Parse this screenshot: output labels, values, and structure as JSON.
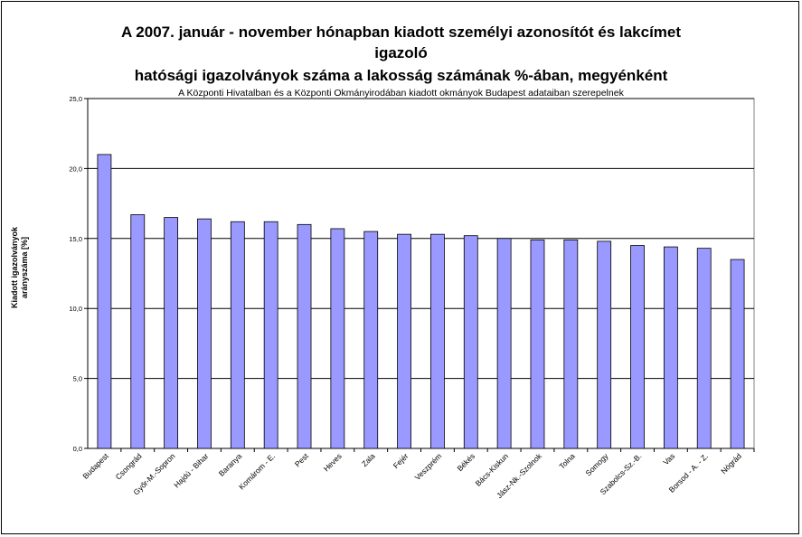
{
  "chart_data": {
    "type": "bar",
    "title_lines": [
      "A 2007. január - november hónapban kiadott személyi azonosítót és lakcímet",
      "igazoló",
      "hatósági igazolványok száma a lakosság  számának %-ában, megyénként"
    ],
    "subtitle": "A Központi Hivatalban és a Központi Okmányirodában kiadott okmányok Budapest adataiban szerepelnek",
    "ylabel_lines": [
      "Kiadott igazolványok",
      "arányszáma [%]"
    ],
    "xlabel": "",
    "ylim": [
      0,
      25
    ],
    "yticks": [
      0,
      5,
      10,
      15,
      20,
      25
    ],
    "ytick_labels": [
      "0,0",
      "5,0",
      "10,0",
      "15,0",
      "20,0",
      "25,0"
    ],
    "grid": true,
    "legend": "none",
    "categories": [
      "Budapest",
      "Csongrád",
      "Győr-M.-Sopron",
      "Hajdú - Bihar",
      "Baranya",
      "Komárom - E.",
      "Pest",
      "Heves",
      "Zala",
      "Fejér",
      "Veszprém",
      "Békés",
      "Bács-Kiskun",
      "Jász-Nk.-Szolnok",
      "Tolna",
      "Somogy",
      "Szabolcs-Sz.-B.",
      "Vas",
      "Borsod - A. - Z.",
      "Nógrád"
    ],
    "values": [
      21.0,
      16.7,
      16.5,
      16.4,
      16.2,
      16.2,
      16.0,
      15.7,
      15.5,
      15.3,
      15.3,
      15.2,
      15.0,
      14.9,
      14.9,
      14.8,
      14.5,
      14.4,
      14.3,
      13.5
    ]
  },
  "colors": {
    "bar_fill": "#9999ff",
    "bar_stroke": "#000000",
    "plot_background": "#ffffff",
    "gridline": "#000000"
  }
}
